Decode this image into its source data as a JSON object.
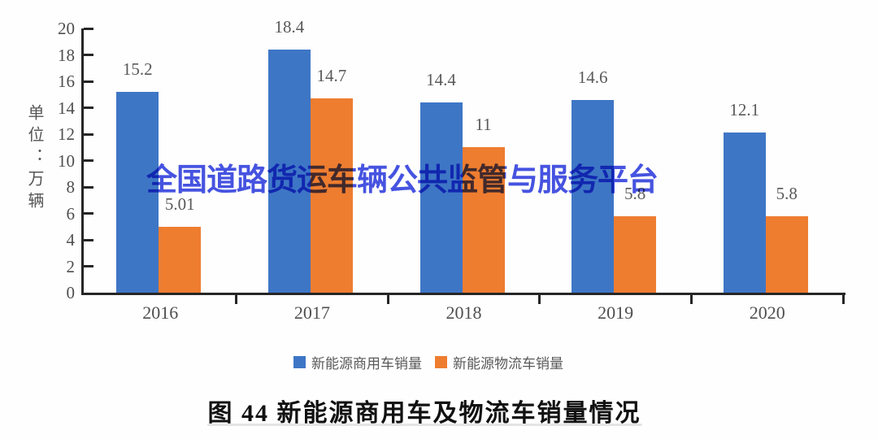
{
  "watermark": {
    "text": "全国道路货运车辆公共监管与服务平台",
    "color": "#3644df"
  },
  "chart_data": {
    "type": "bar",
    "title": "图 44  新能源商用车及物流车销量情况",
    "xlabel": "",
    "ylabel": "单位：万辆",
    "categories": [
      "2016",
      "2017",
      "2018",
      "2019",
      "2020"
    ],
    "series": [
      {
        "name": "新能源商用车销量",
        "color": "#3e76c6",
        "values": [
          15.2,
          18.4,
          14.4,
          14.6,
          12.1
        ],
        "labels": [
          "15.2",
          "18.4",
          "14.4",
          "14.6",
          "12.1"
        ]
      },
      {
        "name": "新能源物流车销量",
        "color": "#ee7d30",
        "values": [
          5.01,
          14.7,
          11,
          5.8,
          5.8
        ],
        "labels": [
          "5.01",
          "14.7",
          "11",
          "5.8",
          "5.8"
        ]
      }
    ],
    "ylim": [
      0,
      20
    ],
    "y_ticks": [
      0,
      2,
      4,
      6,
      8,
      10,
      12,
      14,
      16,
      18,
      20
    ],
    "grid": false,
    "legend_position": "bottom",
    "axis_color": "#262626",
    "label_color": "#595959"
  }
}
